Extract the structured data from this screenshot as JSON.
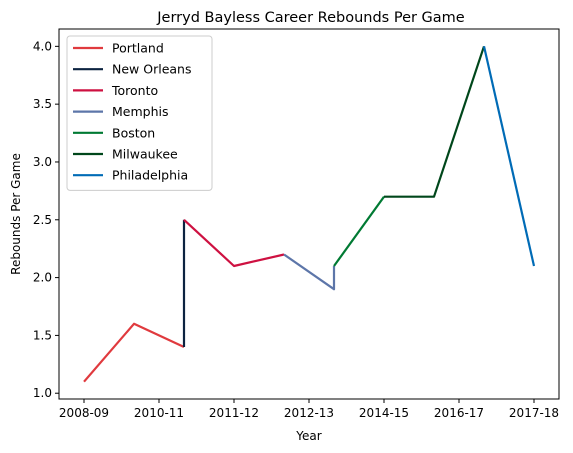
{
  "chart_data": {
    "type": "line",
    "title": "Jerryd Bayless Career Rebounds Per Game",
    "xlabel": "Year",
    "ylabel": "Rebounds Per Game",
    "xlim": [
      -0.5,
      9.5
    ],
    "ylim": [
      0.95,
      4.15
    ],
    "x_ticks": [
      {
        "pos": 0,
        "label": "2008-09"
      },
      {
        "pos": 1.5,
        "label": "2010-11"
      },
      {
        "pos": 3,
        "label": "2011-12"
      },
      {
        "pos": 4.5,
        "label": "2012-13"
      },
      {
        "pos": 6,
        "label": "2014-15"
      },
      {
        "pos": 7.5,
        "label": "2016-17"
      },
      {
        "pos": 9,
        "label": "2017-18"
      }
    ],
    "y_ticks": [
      1.0,
      1.5,
      2.0,
      2.5,
      3.0,
      3.5,
      4.0
    ],
    "grid": false,
    "legend_position": "top-left",
    "series": [
      {
        "name": "Portland",
        "color": "#e03a3e",
        "points": [
          [
            0,
            1.1
          ],
          [
            1,
            1.6
          ],
          [
            2,
            1.4
          ]
        ]
      },
      {
        "name": "New Orleans",
        "color": "#0c2340",
        "points": [
          [
            2,
            1.4
          ],
          [
            2,
            2.5
          ]
        ]
      },
      {
        "name": "Toronto",
        "color": "#ce1141",
        "points": [
          [
            2,
            2.5
          ],
          [
            3,
            2.1
          ],
          [
            4,
            2.2
          ]
        ]
      },
      {
        "name": "Memphis",
        "color": "#5d76a9",
        "points": [
          [
            4,
            2.2
          ],
          [
            5,
            1.9
          ],
          [
            5,
            2.1
          ]
        ]
      },
      {
        "name": "Boston",
        "color": "#007a33",
        "points": [
          [
            5,
            2.1
          ],
          [
            6,
            2.7
          ]
        ]
      },
      {
        "name": "Milwaukee",
        "color": "#00471b",
        "points": [
          [
            6,
            2.7
          ],
          [
            7,
            2.7
          ],
          [
            8,
            4.0
          ]
        ]
      },
      {
        "name": "Philadelphia",
        "color": "#006bb6",
        "points": [
          [
            8,
            4.0
          ],
          [
            9,
            2.1
          ]
        ]
      }
    ]
  }
}
